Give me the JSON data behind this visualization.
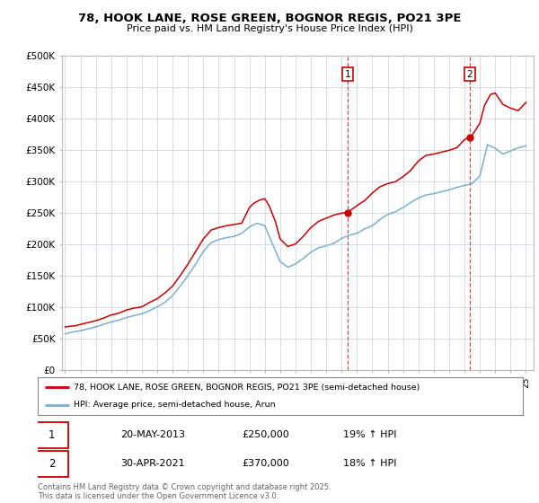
{
  "title": "78, HOOK LANE, ROSE GREEN, BOGNOR REGIS, PO21 3PE",
  "subtitle": "Price paid vs. HM Land Registry's House Price Index (HPI)",
  "legend_line1": "78, HOOK LANE, ROSE GREEN, BOGNOR REGIS, PO21 3PE (semi-detached house)",
  "legend_line2": "HPI: Average price, semi-detached house, Arun",
  "footer": "Contains HM Land Registry data © Crown copyright and database right 2025.\nThis data is licensed under the Open Government Licence v3.0.",
  "red_color": "#cc0000",
  "blue_color": "#7ab0d4",
  "annotation1": {
    "label": "1",
    "date": "20-MAY-2013",
    "price": "£250,000",
    "hpi": "19% ↑ HPI"
  },
  "annotation2": {
    "label": "2",
    "date": "30-APR-2021",
    "price": "£370,000",
    "hpi": "18% ↑ HPI"
  },
  "sale1_x": 2013.38,
  "sale1_y": 250000,
  "sale2_x": 2021.33,
  "sale2_y": 370000,
  "xmin": 1994.8,
  "xmax": 2025.5,
  "ymin": 0,
  "ymax": 500000,
  "yticks": [
    0,
    50000,
    100000,
    150000,
    200000,
    250000,
    300000,
    350000,
    400000,
    450000,
    500000
  ],
  "ytick_labels": [
    "£0",
    "£50K",
    "£100K",
    "£150K",
    "£200K",
    "£250K",
    "£300K",
    "£350K",
    "£400K",
    "£450K",
    "£500K"
  ],
  "background_color": "#ffffff",
  "plot_background": "#ffffff",
  "grid_color": "#d0d8e0",
  "red_x": [
    1995.0,
    1995.3,
    1995.7,
    1996.0,
    1996.5,
    1997.0,
    1997.5,
    1998.0,
    1998.5,
    1999.0,
    1999.5,
    2000.0,
    2000.5,
    2001.0,
    2001.5,
    2002.0,
    2002.5,
    2003.0,
    2003.5,
    2004.0,
    2004.5,
    2005.0,
    2005.5,
    2006.0,
    2006.5,
    2007.0,
    2007.3,
    2007.7,
    2008.0,
    2008.3,
    2008.7,
    2009.0,
    2009.5,
    2010.0,
    2010.5,
    2011.0,
    2011.5,
    2012.0,
    2012.5,
    2013.0,
    2013.38,
    2013.5,
    2014.0,
    2014.5,
    2015.0,
    2015.5,
    2016.0,
    2016.5,
    2017.0,
    2017.5,
    2018.0,
    2018.5,
    2019.0,
    2019.5,
    2020.0,
    2020.5,
    2021.0,
    2021.33,
    2021.5,
    2022.0,
    2022.3,
    2022.7,
    2023.0,
    2023.5,
    2024.0,
    2024.5,
    2025.0
  ],
  "red_y": [
    68000,
    69000,
    70000,
    72000,
    75000,
    78000,
    82000,
    87000,
    90000,
    95000,
    98000,
    100000,
    107000,
    113000,
    122000,
    133000,
    150000,
    168000,
    188000,
    208000,
    222000,
    226000,
    229000,
    231000,
    233000,
    258000,
    265000,
    270000,
    272000,
    260000,
    235000,
    208000,
    196000,
    200000,
    212000,
    226000,
    236000,
    241000,
    246000,
    249000,
    250000,
    252000,
    261000,
    269000,
    281000,
    291000,
    296000,
    299000,
    307000,
    317000,
    332000,
    341000,
    343000,
    346000,
    349000,
    353000,
    366000,
    370000,
    373000,
    392000,
    420000,
    438000,
    440000,
    422000,
    416000,
    412000,
    425000
  ],
  "blue_x": [
    1995.0,
    1995.5,
    1996.0,
    1996.5,
    1997.0,
    1997.5,
    1998.0,
    1998.5,
    1999.0,
    1999.5,
    2000.0,
    2000.5,
    2001.0,
    2001.5,
    2002.0,
    2002.5,
    2003.0,
    2003.5,
    2004.0,
    2004.5,
    2005.0,
    2005.5,
    2006.0,
    2006.5,
    2007.0,
    2007.5,
    2008.0,
    2008.5,
    2009.0,
    2009.5,
    2010.0,
    2010.5,
    2011.0,
    2011.5,
    2012.0,
    2012.5,
    2013.0,
    2013.5,
    2014.0,
    2014.5,
    2015.0,
    2015.5,
    2016.0,
    2016.5,
    2017.0,
    2017.5,
    2018.0,
    2018.5,
    2019.0,
    2019.5,
    2020.0,
    2020.5,
    2021.0,
    2021.5,
    2022.0,
    2022.5,
    2023.0,
    2023.5,
    2024.0,
    2024.5,
    2025.0
  ],
  "blue_y": [
    57000,
    60000,
    62000,
    65000,
    68000,
    72000,
    76000,
    79000,
    83000,
    86000,
    89000,
    94000,
    100000,
    107000,
    118000,
    133000,
    150000,
    168000,
    188000,
    202000,
    207000,
    210000,
    212000,
    217000,
    227000,
    233000,
    229000,
    200000,
    172000,
    163000,
    168000,
    177000,
    187000,
    194000,
    197000,
    201000,
    209000,
    214000,
    217000,
    224000,
    229000,
    239000,
    247000,
    251000,
    258000,
    266000,
    273000,
    278000,
    280000,
    283000,
    286000,
    290000,
    293000,
    296000,
    308000,
    358000,
    352000,
    343000,
    348000,
    353000,
    356000
  ]
}
